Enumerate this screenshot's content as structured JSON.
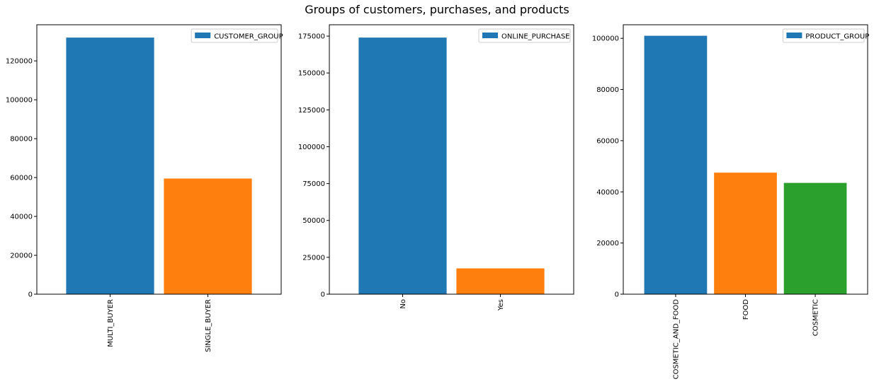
{
  "figure": {
    "title": "Groups of customers, purchases, and products"
  },
  "colors": {
    "c0": "#1f77b4",
    "c1": "#ff7f0e",
    "c2": "#2ca02c",
    "axis": "#000000",
    "background": "#ffffff"
  },
  "chart_data": [
    {
      "type": "bar",
      "title": "",
      "xlabel": "",
      "ylabel": "",
      "categories": [
        "MULTI_BUYER",
        "SINGLE_BUYER"
      ],
      "values": [
        132000,
        59500
      ],
      "bar_colors": [
        "#1f77b4",
        "#ff7f0e"
      ],
      "legend": {
        "label": "CUSTOMER_GROUP",
        "color": "#1f77b4",
        "position": "top-right"
      },
      "ylim": [
        0,
        138600
      ],
      "yticks": [
        0,
        20000,
        40000,
        60000,
        80000,
        100000,
        120000
      ],
      "grid": false
    },
    {
      "type": "bar",
      "title": "",
      "xlabel": "",
      "ylabel": "",
      "categories": [
        "No",
        "Yes"
      ],
      "values": [
        174000,
        17500
      ],
      "bar_colors": [
        "#1f77b4",
        "#ff7f0e"
      ],
      "legend": {
        "label": "ONLINE_PURCHASE",
        "color": "#1f77b4",
        "position": "top-right"
      },
      "ylim": [
        0,
        182700
      ],
      "yticks": [
        0,
        25000,
        50000,
        75000,
        100000,
        125000,
        150000,
        175000
      ],
      "grid": false
    },
    {
      "type": "bar",
      "title": "",
      "xlabel": "",
      "ylabel": "",
      "categories": [
        "COSMETIC_AND_FOOD",
        "FOOD",
        "COSMETIC"
      ],
      "values": [
        101000,
        47500,
        43500
      ],
      "bar_colors": [
        "#1f77b4",
        "#ff7f0e",
        "#2ca02c"
      ],
      "legend": {
        "label": "PRODUCT_GROUP",
        "color": "#1f77b4",
        "position": "top-right"
      },
      "ylim": [
        0,
        105300
      ],
      "yticks": [
        0,
        20000,
        40000,
        60000,
        80000,
        100000
      ],
      "grid": false
    }
  ]
}
